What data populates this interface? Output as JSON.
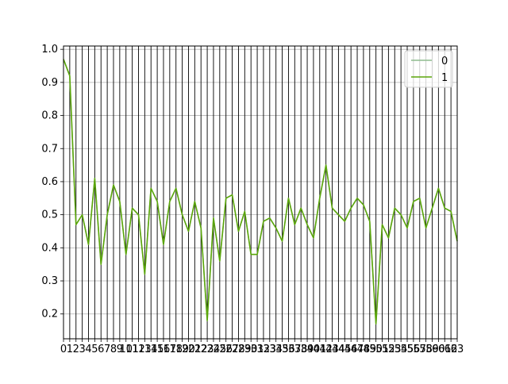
{
  "chart_data": {
    "type": "line",
    "x": [
      0,
      1,
      2,
      3,
      4,
      5,
      6,
      7,
      8,
      9,
      10,
      11,
      12,
      13,
      14,
      15,
      16,
      17,
      18,
      19,
      20,
      21,
      22,
      23,
      24,
      25,
      26,
      27,
      28,
      29,
      30,
      31,
      32,
      33,
      34,
      35,
      36,
      37,
      38,
      39,
      40,
      41,
      42,
      43,
      44,
      45,
      46,
      47,
      48,
      49,
      50,
      51,
      52,
      53,
      54,
      55,
      56,
      57,
      58,
      59,
      60,
      61,
      62,
      63
    ],
    "xticks": [
      "0",
      "1",
      "2",
      "3",
      "4",
      "5",
      "6",
      "7",
      "8",
      "9",
      "10",
      "11",
      "12",
      "13",
      "14",
      "15",
      "16",
      "17",
      "18",
      "19",
      "20",
      "21",
      "22",
      "23",
      "24",
      "25",
      "26",
      "27",
      "28",
      "29",
      "30",
      "31",
      "32",
      "33",
      "34",
      "35",
      "36",
      "37",
      "38",
      "39",
      "40",
      "41",
      "42",
      "43",
      "44",
      "45",
      "46",
      "47",
      "48",
      "49",
      "50",
      "51",
      "52",
      "53",
      "54",
      "55",
      "56",
      "57",
      "58",
      "59",
      "60",
      "61",
      "62",
      "63"
    ],
    "yticks": [
      0.2,
      0.3,
      0.4,
      0.5,
      0.6,
      0.7,
      0.8,
      0.9,
      1.0
    ],
    "ytick_labels": [
      "0.2",
      "0.3",
      "0.4",
      "0.5",
      "0.6",
      "0.7",
      "0.8",
      "0.9",
      "1.0"
    ],
    "xlim": [
      0,
      63
    ],
    "ylim": [
      0.125,
      1.01
    ],
    "xlabel": "",
    "ylabel": "",
    "title": "",
    "grid": "vertical and horizontal",
    "legend_position": "top-right",
    "series": [
      {
        "name": "0",
        "color": "#8fbc8f",
        "values": [
          0.97,
          0.92,
          0.47,
          0.5,
          0.41,
          0.61,
          0.35,
          0.5,
          0.59,
          0.54,
          0.38,
          0.52,
          0.5,
          0.32,
          0.58,
          0.54,
          0.41,
          0.54,
          0.58,
          0.5,
          0.45,
          0.54,
          0.46,
          0.18,
          0.49,
          0.36,
          0.55,
          0.56,
          0.45,
          0.51,
          0.38,
          0.38,
          0.48,
          0.49,
          0.46,
          0.42,
          0.55,
          0.47,
          0.52,
          0.47,
          0.43,
          0.55,
          0.65,
          0.52,
          0.5,
          0.48,
          0.52,
          0.55,
          0.53,
          0.48,
          0.17,
          0.47,
          0.43,
          0.52,
          0.5,
          0.46,
          0.54,
          0.55,
          0.46,
          0.52,
          0.58,
          0.52,
          0.51,
          0.42
        ]
      },
      {
        "name": "1",
        "color": "#5ba60b",
        "values": [
          0.97,
          0.92,
          0.47,
          0.5,
          0.41,
          0.61,
          0.35,
          0.5,
          0.59,
          0.54,
          0.38,
          0.52,
          0.5,
          0.32,
          0.58,
          0.54,
          0.41,
          0.54,
          0.58,
          0.5,
          0.45,
          0.54,
          0.46,
          0.18,
          0.49,
          0.36,
          0.55,
          0.56,
          0.45,
          0.51,
          0.38,
          0.38,
          0.48,
          0.49,
          0.46,
          0.42,
          0.55,
          0.47,
          0.52,
          0.47,
          0.43,
          0.55,
          0.65,
          0.52,
          0.5,
          0.48,
          0.52,
          0.55,
          0.53,
          0.48,
          0.17,
          0.47,
          0.43,
          0.52,
          0.5,
          0.46,
          0.54,
          0.55,
          0.46,
          0.52,
          0.58,
          0.52,
          0.51,
          0.42
        ]
      }
    ]
  }
}
